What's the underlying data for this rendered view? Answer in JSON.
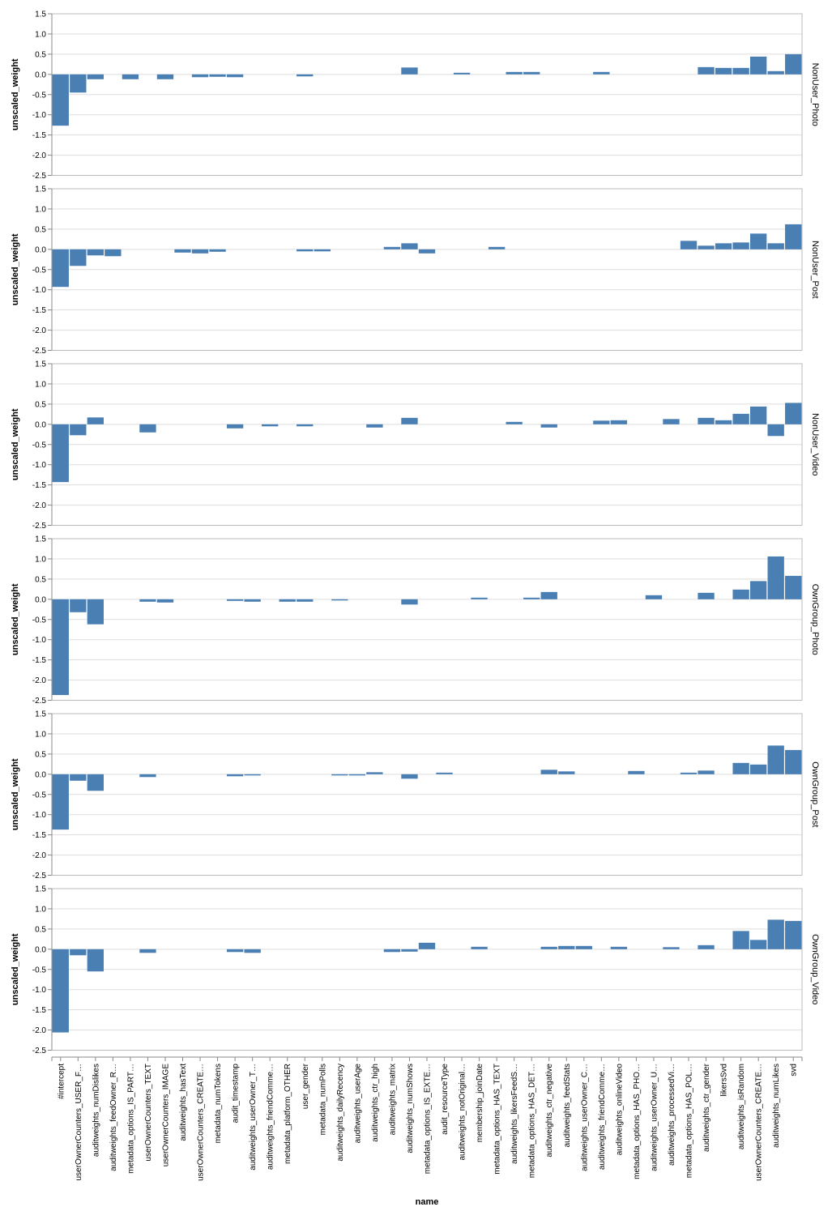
{
  "chart_data": {
    "type": "bar",
    "facet_field": "type",
    "xlabel": "name",
    "ylabel": "unscaled_weight",
    "ylim": [
      -2.5,
      1.5
    ],
    "y_ticks": [
      1.5,
      1.0,
      0.5,
      0.0,
      -0.5,
      -1.0,
      -1.5,
      -2.0,
      -2.5
    ],
    "y_tick_labels": [
      "1.5",
      "1.0",
      "0.5",
      "0.0",
      "-0.5",
      "-1.0",
      "-1.5",
      "-2.0",
      "-2.5"
    ],
    "grid": true,
    "bar_color": "#4a7fb4",
    "categories": [
      "#intercept",
      "userOwnerCounters_USER_F…",
      "auditweights_numDislikes",
      "auditweights_feedOwner_R…",
      "metadata_options_IS_PART…",
      "userOwnerCounters_TEXT",
      "userOwnerCounters_IMAGE",
      "auditweights_hasText",
      "userOwnerCounters_CREATE…",
      "metadata_numTokens",
      "audit_timestamp",
      "auditweights_userOwner_T…",
      "auditweights_friendComme…",
      "metadata_platform_OTHER",
      "user_gender",
      "metadata_numPolls",
      "auditweights_dailyRecency",
      "auditweights_userAge",
      "auditweights_ctr_high",
      "auditweights_matrix",
      "auditweights_numShows",
      "metadata_options_IS_EXTE…",
      "audit_resourceType",
      "auditweights_notOriginal…",
      "membership_joinDate",
      "metadata_options_HAS_TEXT",
      "auditweights_likersFeedS…",
      "metadata_options_HAS_DET…",
      "auditweights_ctr_negative",
      "auditweights_feedStats",
      "auditweights_userOwner_C…",
      "auditweights_friendComme…",
      "auditweights_onlineVideo",
      "metadata_options_HAS_PHO…",
      "auditweights_userOwner_U…",
      "auditweights_processedVi…",
      "metadata_options_HAS_POL…",
      "auditweights_ctr_gender",
      "likersSvd",
      "auditweights_isRandom",
      "userOwnerCounters_CREATE…",
      "auditweights_numLikes",
      "svd"
    ],
    "series": [
      {
        "name": "NonUser_Photo",
        "values": [
          -1.27,
          -0.45,
          -0.12,
          0,
          -0.12,
          0,
          -0.12,
          0,
          -0.07,
          -0.06,
          -0.07,
          0,
          0,
          0,
          -0.05,
          0,
          0,
          0,
          0,
          0,
          0.17,
          0,
          0,
          0.04,
          0,
          0,
          0.06,
          0.06,
          0,
          0,
          0,
          0.06,
          0,
          0,
          0,
          0,
          0,
          0.18,
          0.16,
          0.16,
          0.44,
          0.08,
          0.5
        ]
      },
      {
        "name": "NonUser_Post",
        "values": [
          -0.93,
          -0.41,
          -0.15,
          -0.17,
          0,
          0,
          0,
          -0.08,
          -0.1,
          -0.06,
          0,
          0,
          0,
          0,
          -0.05,
          -0.05,
          0,
          0,
          0,
          0.06,
          0.15,
          -0.1,
          0,
          0,
          0,
          0.06,
          0,
          0,
          0,
          0,
          0,
          0,
          0,
          0,
          0,
          0,
          0.21,
          0.09,
          0.15,
          0.17,
          0.39,
          0.15,
          0.62
        ]
      },
      {
        "name": "NonUser_Video",
        "values": [
          -1.43,
          -0.27,
          0.17,
          0,
          0,
          -0.2,
          0,
          0,
          0,
          0,
          -0.1,
          0,
          -0.05,
          0,
          -0.05,
          0,
          0,
          0,
          -0.08,
          0,
          0.16,
          0,
          0,
          0,
          0,
          0,
          0.06,
          0,
          -0.08,
          0,
          0,
          0.09,
          0.1,
          0,
          0,
          0.13,
          0,
          0.16,
          0.1,
          0.26,
          0.44,
          -0.29,
          0.53
        ]
      },
      {
        "name": "OwnGroup_Photo",
        "values": [
          -2.37,
          -0.32,
          -0.62,
          0,
          0,
          -0.06,
          -0.08,
          0,
          0,
          0,
          -0.04,
          -0.06,
          0,
          -0.06,
          -0.06,
          0,
          -0.03,
          0,
          0,
          0,
          -0.13,
          0,
          0,
          0,
          0.04,
          0,
          0,
          0.04,
          0.18,
          0,
          0,
          0,
          0,
          0,
          0.1,
          0,
          0,
          0.16,
          0,
          0.24,
          0.45,
          1.06,
          0.58
        ]
      },
      {
        "name": "OwnGroup_Post",
        "values": [
          -1.37,
          -0.16,
          -0.41,
          0,
          0,
          -0.07,
          0,
          0,
          0,
          0,
          -0.05,
          -0.03,
          0,
          0,
          0,
          0,
          -0.03,
          -0.03,
          0.05,
          0,
          -0.11,
          0,
          0.04,
          0,
          0,
          0,
          0,
          0,
          0.11,
          0.07,
          0,
          0,
          0,
          0.08,
          0,
          0,
          0.04,
          0.09,
          0,
          0.28,
          0.24,
          0.71,
          0.6
        ]
      },
      {
        "name": "OwnGroup_Video",
        "values": [
          -2.06,
          -0.15,
          -0.55,
          0,
          0,
          -0.09,
          0,
          0,
          0,
          0,
          -0.07,
          -0.09,
          0,
          0,
          0,
          0,
          0,
          0,
          0,
          -0.07,
          -0.06,
          0.16,
          0,
          0,
          0.06,
          0,
          0,
          0,
          0.06,
          0.08,
          0.08,
          0,
          0.06,
          0,
          0,
          0.05,
          0,
          0.1,
          0,
          0.45,
          0.23,
          0.73,
          0.7
        ]
      }
    ]
  }
}
